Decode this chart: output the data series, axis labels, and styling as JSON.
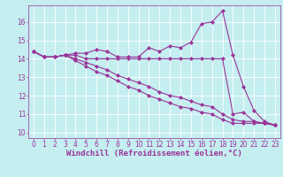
{
  "xlabel": "Windchill (Refroidissement éolien,°C)",
  "bg_color": "#c5eef0",
  "grid_color": "#ffffff",
  "line_color": "#993399",
  "xlim": [
    -0.5,
    23.5
  ],
  "ylim": [
    9.7,
    16.9
  ],
  "xticks": [
    0,
    1,
    2,
    3,
    4,
    5,
    6,
    7,
    8,
    9,
    10,
    11,
    12,
    13,
    14,
    15,
    16,
    17,
    18,
    19,
    20,
    21,
    22,
    23
  ],
  "yticks": [
    10,
    11,
    12,
    13,
    14,
    15,
    16
  ],
  "series": [
    [
      14.4,
      14.1,
      14.1,
      14.2,
      14.3,
      14.3,
      14.5,
      14.4,
      14.1,
      14.1,
      14.1,
      14.6,
      14.4,
      14.7,
      14.6,
      14.9,
      15.9,
      16.0,
      16.6,
      14.2,
      12.5,
      11.2,
      10.6,
      10.4
    ],
    [
      14.4,
      14.1,
      14.1,
      14.2,
      14.2,
      14.0,
      14.0,
      14.0,
      14.0,
      14.0,
      14.0,
      14.0,
      14.0,
      14.0,
      14.0,
      14.0,
      14.0,
      14.0,
      14.0,
      11.0,
      11.1,
      10.6,
      10.5,
      10.4
    ],
    [
      14.4,
      14.1,
      14.1,
      14.2,
      13.9,
      13.6,
      13.3,
      13.1,
      12.8,
      12.5,
      12.3,
      12.0,
      11.8,
      11.6,
      11.4,
      11.3,
      11.1,
      11.0,
      10.7,
      10.5,
      10.5,
      10.5,
      10.5,
      10.4
    ],
    [
      14.4,
      14.1,
      14.1,
      14.2,
      14.0,
      13.8,
      13.6,
      13.4,
      13.1,
      12.9,
      12.7,
      12.5,
      12.2,
      12.0,
      11.9,
      11.7,
      11.5,
      11.4,
      11.0,
      10.7,
      10.6,
      10.6,
      10.5,
      10.4
    ]
  ],
  "marker": "D",
  "marker_size": 2.2,
  "line_width": 0.8,
  "font_color": "#993399",
  "tick_fontsize": 5.5,
  "xlabel_fontsize": 6.5
}
